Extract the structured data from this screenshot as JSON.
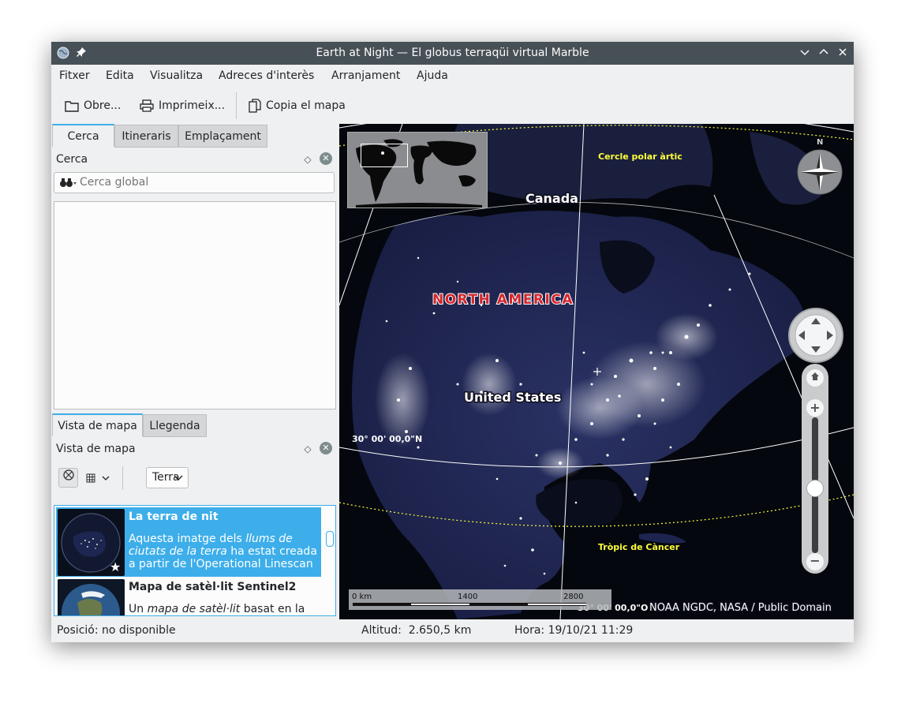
{
  "window": {
    "title": "Earth at Night — El globus terraqüi virtual Marble",
    "app_icon": "globe-icon",
    "pin_icon": "pin-icon",
    "controls": [
      "minimize",
      "maximize",
      "close"
    ]
  },
  "menubar": [
    "Fitxer",
    "Edita",
    "Visualitza",
    "Adreces d'interès",
    "Arranjament",
    "Ajuda"
  ],
  "toolbar": {
    "open_label": "Obre...",
    "print_label": "Imprimeix...",
    "copy_label": "Copia el mapa"
  },
  "left_tabs": [
    "Cerca",
    "Itineraris",
    "Emplaçament"
  ],
  "search_panel": {
    "title": "Cerca",
    "placeholder": "Cerca global"
  },
  "bottom_tabs": [
    "Vista de mapa",
    "Llegenda"
  ],
  "mapview_panel": {
    "title": "Vista de mapa",
    "celestial_body": "Terra",
    "themes": [
      {
        "title": "La terra de nit",
        "desc_1": "Aquesta imatge dels ",
        "desc_2": "llums de ciutats de la terra",
        "desc_3": " ha estat creada a partir de l'Operational Linescan",
        "selected": true,
        "favorite": true
      },
      {
        "title": "Mapa de satèl·lit Sentinel2",
        "desc_1": "Un ",
        "desc_2": "mapa de satèl·lit",
        "desc_3": " basat en la"
      }
    ]
  },
  "map": {
    "labels": {
      "arctic_circle": "Cercle polar àrtic",
      "canada": "Canada",
      "north_america": "NORTH AMERICA",
      "united_states": "United States",
      "latitude_30": "30° 00' 00,0\"N",
      "tropic_cancer": "Tròpic de Càncer",
      "longitude": "30° 00' 00,0\"O",
      "attribution": "NOAA NGDC, NASA / Public Domain"
    },
    "compass_n": "N",
    "scale": {
      "labels": [
        "0 km",
        "1400",
        "2800"
      ]
    },
    "zoom_slider_fraction": 0.42,
    "colors": {
      "night_bg": "#05070e",
      "land": "#1e2450",
      "city_light": "#ffffff",
      "grid_yellow": "#ffff3a",
      "north_america_label": "#d3252c"
    }
  },
  "status": {
    "position": "Posició: no disponible",
    "altitude_label": "Altitud:",
    "altitude_value": "2.650,5 km",
    "time_label": "Hora:",
    "time_value": "19/10/21 11:29"
  },
  "colors": {
    "titlebar": "#475057",
    "accent": "#3daee9",
    "window_bg": "#eff0f1"
  }
}
